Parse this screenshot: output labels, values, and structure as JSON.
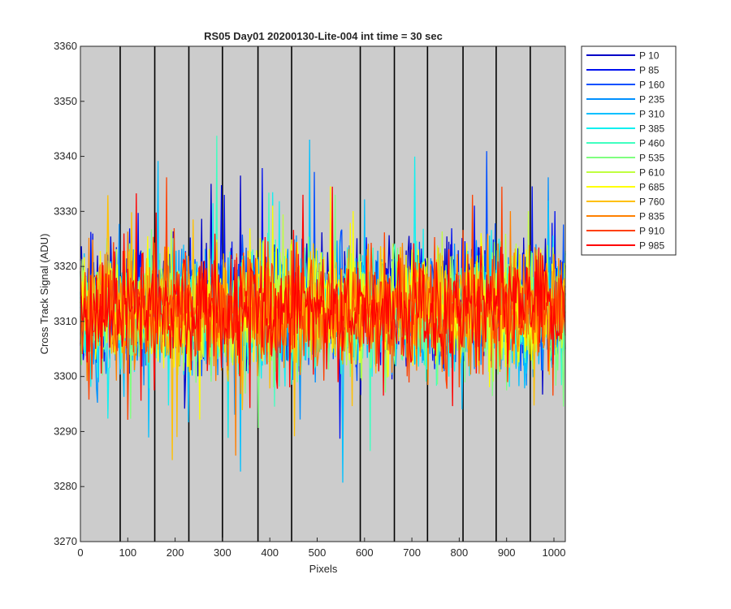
{
  "chart_data": {
    "type": "line",
    "title": "RS05 Day01 20200130-Lite-004 int time = 30 sec",
    "xlabel": "Pixels",
    "ylabel": "Cross Track Signal (ADU)",
    "xlim": [
      0,
      1024
    ],
    "ylim": [
      3270,
      3360
    ],
    "xticks": [
      0,
      100,
      200,
      300,
      400,
      500,
      600,
      700,
      800,
      900,
      1000
    ],
    "yticks": [
      3270,
      3280,
      3290,
      3300,
      3310,
      3320,
      3330,
      3340,
      3350,
      3360
    ],
    "background_color": "#cccccc",
    "vertical_markers": [
      84,
      157,
      229,
      300,
      375,
      446,
      591,
      663,
      733,
      808,
      878,
      950
    ],
    "legend_position": "outside-right-top",
    "signal_summary": {
      "approx_mean": 3312,
      "typical_range": [
        3295,
        3330
      ],
      "extremes_min": 3273,
      "extremes_max": 3352
    },
    "series": [
      {
        "name": "P 10",
        "color": "#0000c8",
        "offset": 2
      },
      {
        "name": "P 85",
        "color": "#0010f0",
        "offset": 1
      },
      {
        "name": "P 160",
        "color": "#0050ff",
        "offset": 1
      },
      {
        "name": "P 235",
        "color": "#0090ff",
        "offset": 0
      },
      {
        "name": "P 310",
        "color": "#00c0ff",
        "offset": 0
      },
      {
        "name": "P 385",
        "color": "#10f0f0",
        "offset": 0
      },
      {
        "name": "P 460",
        "color": "#40ffc0",
        "offset": 0
      },
      {
        "name": "P 535",
        "color": "#80ff80",
        "offset": -1
      },
      {
        "name": "P 610",
        "color": "#c0ff40",
        "offset": 0
      },
      {
        "name": "P 685",
        "color": "#ffff00",
        "offset": 1
      },
      {
        "name": "P 760",
        "color": "#ffc000",
        "offset": 0
      },
      {
        "name": "P 835",
        "color": "#ff8000",
        "offset": 0
      },
      {
        "name": "P 910",
        "color": "#ff4000",
        "offset": 0
      },
      {
        "name": "P 985",
        "color": "#ff0000",
        "offset": 0
      }
    ]
  }
}
